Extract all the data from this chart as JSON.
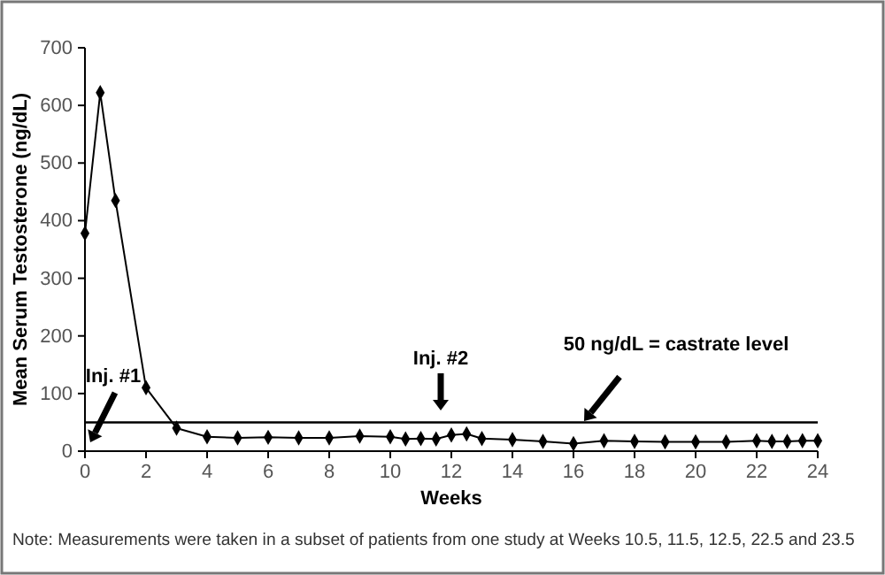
{
  "chart_data": {
    "type": "line",
    "xlabel": "Weeks",
    "ylabel": "Mean Serum Testosterone (ng/dL)",
    "x": [
      0,
      0.5,
      1,
      2,
      3,
      4,
      5,
      6,
      7,
      8,
      9,
      10,
      10.5,
      11,
      11.5,
      12,
      12.5,
      13,
      14,
      15,
      16,
      17,
      18,
      19,
      20,
      21,
      22,
      22.5,
      23,
      23.5,
      24
    ],
    "values": [
      378,
      622,
      435,
      110,
      40,
      25,
      23,
      24,
      23,
      23,
      26,
      25,
      21,
      22,
      21,
      28,
      30,
      22,
      20,
      17,
      13,
      18,
      17,
      16,
      16,
      16,
      18,
      17,
      17,
      18,
      18
    ],
    "color": "#000000",
    "marker": "diamond",
    "line_style": "solid",
    "grid": false,
    "xlim": [
      0,
      24
    ],
    "xticks": [
      0,
      2,
      4,
      6,
      8,
      10,
      12,
      14,
      16,
      18,
      20,
      22,
      24
    ],
    "ylim": [
      0,
      700
    ],
    "yticks": [
      0,
      100,
      200,
      300,
      400,
      500,
      600,
      700
    ],
    "ref_lines": [
      {
        "axis": "y",
        "value": 50,
        "color": "#000000"
      }
    ],
    "annotations": [
      "Inj. #1",
      "Inj. #2",
      "50 ng/dL = castrate level",
      "Note: Measurements were taken in a subset of patients from one study at Weeks 10.5, 11.5, 12.5, 22.5 and 23.5"
    ]
  }
}
